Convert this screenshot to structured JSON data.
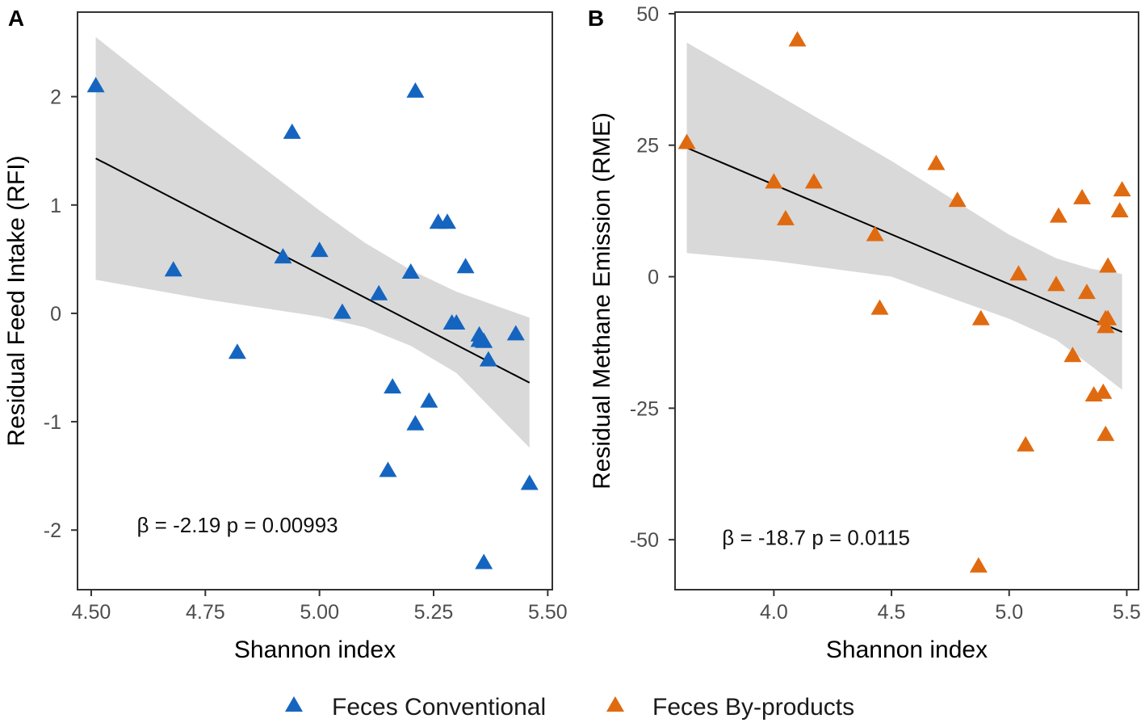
{
  "legend": {
    "items": [
      {
        "label": "Feces Conventional",
        "color": "#1565C0"
      },
      {
        "label": "Feces By-products",
        "color": "#E06A10"
      }
    ]
  },
  "chart_data": [
    {
      "type": "scatter",
      "panel_label": "A",
      "xlabel": "Shannon index",
      "ylabel": "Residual Feed Intake (RFI)",
      "xlim": [
        4.47,
        5.51
      ],
      "ylim": [
        -2.55,
        2.78
      ],
      "xticks": [
        4.5,
        4.75,
        5.0,
        5.25,
        5.5
      ],
      "xtick_labels": [
        "4.50",
        "4.75",
        "5.00",
        "5.25",
        "5.50"
      ],
      "yticks": [
        -2,
        -1,
        0,
        1,
        2
      ],
      "ytick_labels": [
        "-2",
        "-1",
        "0",
        "1",
        "2"
      ],
      "annotation": "β = -2.19 p = 0.00993",
      "annotation_pos": [
        4.6,
        -2.02
      ],
      "series_name": "Feces Conventional",
      "color": "#1565C0",
      "x": [
        4.51,
        4.68,
        4.82,
        4.92,
        4.94,
        5.0,
        5.05,
        5.13,
        5.15,
        5.16,
        5.2,
        5.21,
        5.21,
        5.24,
        5.26,
        5.28,
        5.29,
        5.3,
        5.32,
        5.35,
        5.35,
        5.36,
        5.36,
        5.37,
        5.43,
        5.46
      ],
      "y": [
        2.1,
        0.4,
        -0.36,
        0.52,
        1.67,
        0.58,
        0.01,
        0.18,
        -1.45,
        -0.68,
        0.38,
        2.05,
        -1.02,
        -0.81,
        0.84,
        0.84,
        -0.09,
        -0.09,
        0.43,
        -0.2,
        -0.25,
        -0.26,
        -2.3,
        -0.43,
        -0.19,
        -1.57
      ],
      "fit": {
        "x": [
          4.51,
          5.46
        ],
        "y": [
          1.43,
          -0.64
        ]
      },
      "ci": {
        "x": [
          4.51,
          4.75,
          5.0,
          5.1,
          5.2,
          5.3,
          5.46
        ],
        "upper": [
          2.55,
          1.75,
          0.95,
          0.65,
          0.4,
          0.2,
          -0.04
        ],
        "lower": [
          0.31,
          0.13,
          -0.03,
          -0.13,
          -0.3,
          -0.55,
          -1.24
        ]
      }
    },
    {
      "type": "scatter",
      "panel_label": "B",
      "xlabel": "Shannon index",
      "ylabel": "Residual Methane Emission (RME)",
      "xlim": [
        3.58,
        5.55
      ],
      "ylim": [
        -59.5,
        50.3
      ],
      "xticks": [
        4.0,
        4.5,
        5.0,
        5.5
      ],
      "xtick_labels": [
        "4.0",
        "4.5",
        "5.0",
        "5.5"
      ],
      "yticks": [
        -50,
        -25,
        0,
        25,
        50
      ],
      "ytick_labels": [
        "-50",
        "-25",
        "0",
        "25",
        "50"
      ],
      "annotation": "β = -18.7 p = 0.0115",
      "annotation_pos": [
        3.78,
        -51
      ],
      "series_name": "Feces By-products",
      "color": "#E06A10",
      "x": [
        3.63,
        4.0,
        4.05,
        4.1,
        4.17,
        4.43,
        4.45,
        4.69,
        4.78,
        4.87,
        4.88,
        5.04,
        5.07,
        5.2,
        5.21,
        5.27,
        5.31,
        5.33,
        5.36,
        5.4,
        5.41,
        5.41,
        5.41,
        5.42,
        5.42,
        5.47,
        5.48
      ],
      "y": [
        25.5,
        18,
        11,
        45,
        18,
        8,
        -6,
        21.5,
        14.5,
        -55,
        -8,
        0.5,
        -32,
        -1.5,
        11.5,
        -15,
        15,
        -3,
        -22.5,
        -22,
        -30,
        -9.5,
        -8,
        2,
        -8,
        12.5,
        16.5
      ],
      "fit": {
        "x": [
          3.63,
          5.48
        ],
        "y": [
          24.5,
          -10.5
        ]
      },
      "ci": {
        "x": [
          3.63,
          4.0,
          4.5,
          5.0,
          5.2,
          5.35,
          5.48
        ],
        "upper": [
          44.5,
          35,
          22,
          8,
          3.5,
          1.5,
          0.5
        ],
        "lower": [
          4.5,
          3,
          0,
          -8,
          -12,
          -17,
          -21.5
        ]
      }
    }
  ]
}
